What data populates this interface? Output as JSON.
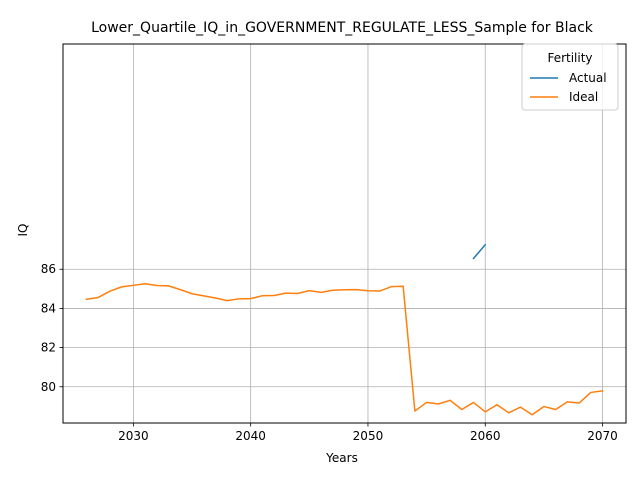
{
  "chart_data": {
    "type": "line",
    "title": "Lower_Quartile_IQ_in_GOVERNMENT_REGULATE_LESS_Sample for Black",
    "xlabel": "Years",
    "ylabel": "IQ",
    "xlim": [
      2024,
      2072
    ],
    "ylim": [
      78.15,
      97.5
    ],
    "xticks": [
      2030,
      2040,
      2050,
      2060,
      2070
    ],
    "yticks": [
      80,
      82,
      84,
      86
    ],
    "grid": true,
    "legend": {
      "title": "Fertility",
      "placement": "top-right"
    },
    "colors": {
      "Actual": "#1f77b4",
      "Ideal": "#ff7f0e"
    },
    "series": [
      {
        "name": "Actual",
        "x": [
          2059,
          2060
        ],
        "y": [
          86.55,
          87.25
        ]
      },
      {
        "name": "Ideal",
        "x": [
          2026,
          2027,
          2028,
          2029,
          2030,
          2031,
          2032,
          2033,
          2034,
          2035,
          2036,
          2037,
          2038,
          2039,
          2040,
          2041,
          2042,
          2043,
          2044,
          2045,
          2046,
          2047,
          2048,
          2049,
          2050,
          2051,
          2052,
          2053,
          2054,
          2055,
          2056,
          2057,
          2058,
          2059,
          2060,
          2061,
          2062,
          2063,
          2064,
          2065,
          2066,
          2067,
          2068,
          2069,
          2070
        ],
        "y": [
          84.47,
          84.56,
          84.88,
          85.1,
          85.18,
          85.26,
          85.17,
          85.15,
          84.96,
          84.75,
          84.64,
          84.53,
          84.4,
          84.49,
          84.5,
          84.65,
          84.66,
          84.78,
          84.76,
          84.91,
          84.82,
          84.93,
          84.95,
          84.96,
          84.9,
          84.89,
          85.11,
          85.13,
          78.76,
          79.2,
          79.12,
          79.31,
          78.84,
          79.2,
          78.72,
          79.08,
          78.67,
          78.96,
          78.57,
          78.99,
          78.84,
          79.23,
          79.17,
          79.71,
          79.79
        ]
      }
    ]
  }
}
